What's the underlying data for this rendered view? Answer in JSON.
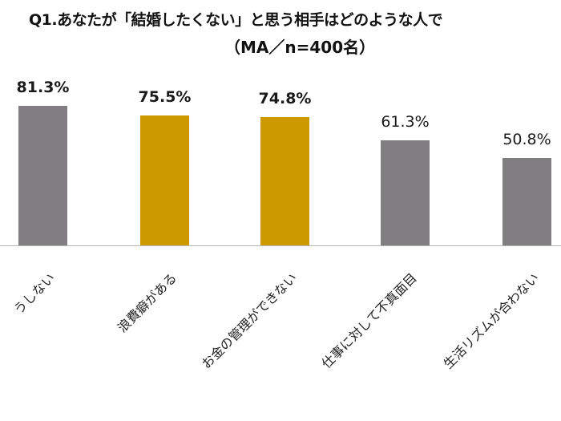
{
  "title": {
    "line1": "Q1.あなたが「結婚したくない」と思う相手はどのような人で",
    "line2": "（MA／n=400名）"
  },
  "colors": {
    "gray": "#807e80",
    "gold": "#cc9900",
    "baseline": "#b5b5b5"
  },
  "chart_data": {
    "type": "bar",
    "title": "Q1.あなたが「結婚したくない」と思う相手はどのような人で（MA／n=400名）",
    "xlabel": "",
    "ylabel": "",
    "ylim": [
      0,
      100
    ],
    "grid": false,
    "legend": null,
    "categories": [
      "…うしない",
      "浪費癖がある",
      "お金の管理ができない",
      "仕事に対して不真面目",
      "生活リズムが合わない"
    ],
    "values": [
      81.3,
      75.5,
      74.8,
      61.3,
      50.8
    ],
    "value_labels": [
      "81.3%",
      "75.5%",
      "74.8%",
      "61.3%",
      "50.8%"
    ],
    "bar_colors": [
      "#807e80",
      "#cc9900",
      "#cc9900",
      "#807e80",
      "#807e80"
    ],
    "highlighted": [
      false,
      true,
      true,
      false,
      false
    ]
  },
  "bars": [
    {
      "label": "81.3%",
      "category": "うしない",
      "color": "#807e80",
      "bold": true
    },
    {
      "label": "75.5%",
      "category": "浪費癖がある",
      "color": "#cc9900",
      "bold": true
    },
    {
      "label": "74.8%",
      "category": "お金の管理ができない",
      "color": "#cc9900",
      "bold": true
    },
    {
      "label": "61.3%",
      "category": "仕事に対して不真面目",
      "color": "#807e80",
      "bold": false
    },
    {
      "label": "50.8%",
      "category": "生活リズムが合わない",
      "color": "#807e80",
      "bold": false
    }
  ]
}
